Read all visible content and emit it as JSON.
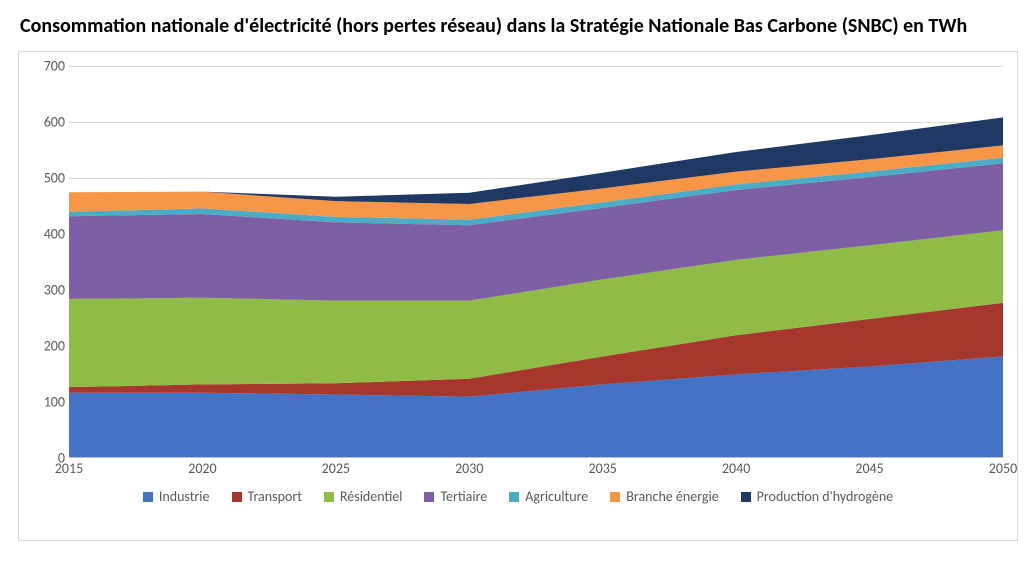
{
  "title": "Consommation nationale d'électricité (hors pertes réseau) dans la Stratégie Nationale Bas Carbone (SNBC) en TWh",
  "chart": {
    "type": "area-stacked",
    "background_color": "#ffffff",
    "border_color": "#d9d9d9",
    "grid_color": "#d9d9d9",
    "axis_label_color": "#595959",
    "tick_fontsize": 14,
    "title_fontsize": 20,
    "title_fontweight": 700,
    "x": {
      "categories": [
        "2015",
        "2020",
        "2025",
        "2030",
        "2035",
        "2040",
        "2045",
        "2050"
      ],
      "min": 2015,
      "max": 2050
    },
    "y": {
      "min": 0,
      "max": 700,
      "tick_step": 100,
      "label": ""
    },
    "series": [
      {
        "key": "industrie",
        "name": "Industrie",
        "color": "#4472c4",
        "values": [
          115,
          115,
          112,
          108,
          130,
          148,
          162,
          180
        ]
      },
      {
        "key": "transport",
        "name": "Transport",
        "color": "#a5372d",
        "values": [
          10,
          15,
          20,
          32,
          50,
          70,
          85,
          96
        ]
      },
      {
        "key": "residentiel",
        "name": "Résidentiel",
        "color": "#8fbb46",
        "values": [
          158,
          155,
          148,
          140,
          138,
          135,
          132,
          130
        ]
      },
      {
        "key": "tertiaire",
        "name": "Tertiaire",
        "color": "#7f5fa4",
        "values": [
          148,
          150,
          140,
          135,
          128,
          125,
          122,
          120
        ]
      },
      {
        "key": "agriculture",
        "name": "Agriculture",
        "color": "#4bacc6",
        "values": [
          8,
          10,
          10,
          10,
          10,
          10,
          10,
          10
        ]
      },
      {
        "key": "energie",
        "name": "Branche énergie",
        "color": "#f79646",
        "values": [
          35,
          30,
          28,
          28,
          25,
          23,
          22,
          22
        ]
      },
      {
        "key": "hydrogene",
        "name": "Production d'hydrogène",
        "color": "#1f3864",
        "values": [
          0,
          0,
          8,
          20,
          28,
          35,
          43,
          50
        ]
      }
    ],
    "legend": {
      "position": "bottom",
      "marker_shape": "square",
      "marker_size": 10
    }
  }
}
